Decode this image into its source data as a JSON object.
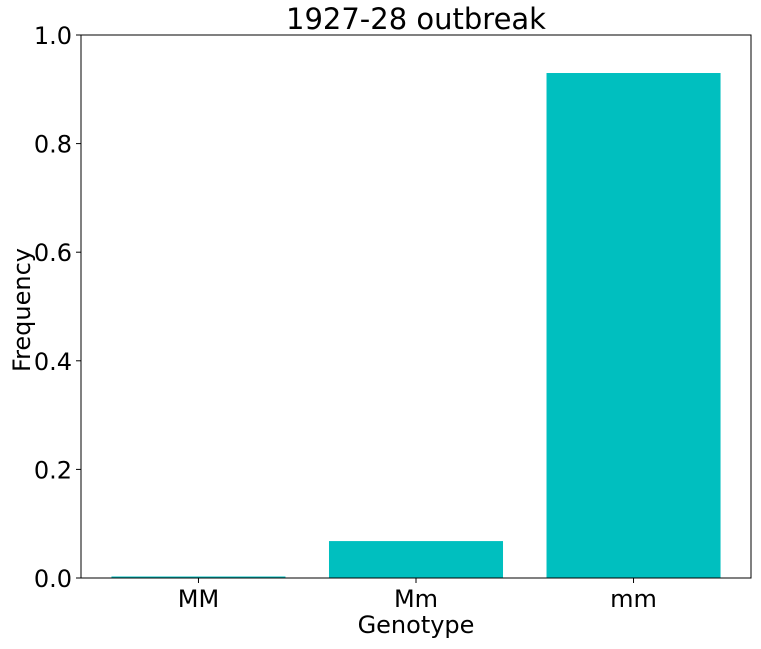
{
  "chart_data": {
    "type": "bar",
    "title": "1927-28 outbreak",
    "xlabel": "Genotype",
    "ylabel": "Frequency",
    "categories": [
      "MM",
      "Mm",
      "mm"
    ],
    "values": [
      0.002,
      0.068,
      0.93
    ],
    "ylim": [
      0,
      1.0
    ],
    "yticks": [
      "0.0",
      "0.2",
      "0.4",
      "0.6",
      "0.8",
      "1.0"
    ],
    "bar_color": "#00bfbf",
    "grid": false,
    "legend": "none"
  }
}
